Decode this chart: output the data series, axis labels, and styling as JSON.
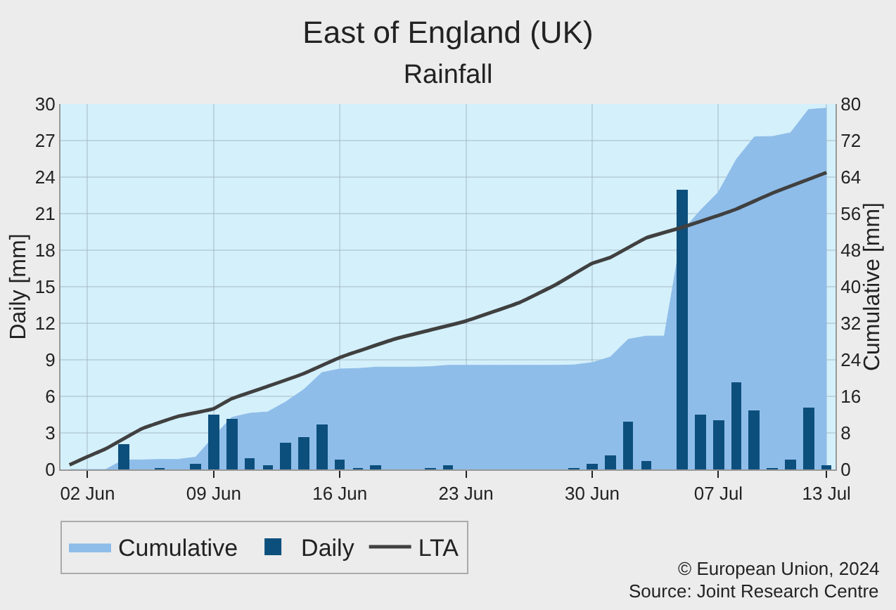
{
  "chart_data": {
    "type": "bar",
    "title": "East of England (UK)",
    "subtitle": "Rainfall",
    "ylabel": "Daily [mm]",
    "y2label": "Cumulative [mm]",
    "annotations": [
      "© European Union, 2024",
      "Source: Joint Research Centre"
    ],
    "xlim": [
      "2024-05-31T12:00",
      "2024-07-13T12:00"
    ],
    "xticks": [
      {
        "value": "2024-06-02",
        "label": "02 Jun"
      },
      {
        "value": "2024-06-09",
        "label": "09 Jun"
      },
      {
        "value": "2024-06-16",
        "label": "16 Jun"
      },
      {
        "value": "2024-06-23",
        "label": "23 Jun"
      },
      {
        "value": "2024-06-30",
        "label": "30 Jun"
      },
      {
        "value": "2024-07-07",
        "label": "07 Jul"
      },
      {
        "value": "2024-07-13",
        "label": "13 Jul"
      }
    ],
    "ylim": [
      0,
      30
    ],
    "yticks": [
      0,
      3,
      6,
      9,
      12,
      15,
      18,
      21,
      24,
      27,
      30
    ],
    "y2lim": [
      0,
      80
    ],
    "y2ticks": [
      0,
      8,
      16,
      24,
      32,
      40,
      48,
      56,
      64,
      72,
      80
    ],
    "grid": true,
    "legend": "bottom left",
    "series": [
      {
        "name": "Cumulative",
        "type": "area",
        "axis": "y2",
        "color": "#8fbde9",
        "x": [
          "2024-06-01",
          "2024-06-02",
          "2024-06-03",
          "2024-06-04",
          "2024-06-05",
          "2024-06-06",
          "2024-06-07",
          "2024-06-08",
          "2024-06-09",
          "2024-06-10",
          "2024-06-11",
          "2024-06-12",
          "2024-06-13",
          "2024-06-14",
          "2024-06-15",
          "2024-06-16",
          "2024-06-17",
          "2024-06-18",
          "2024-06-19",
          "2024-06-20",
          "2024-06-21",
          "2024-06-22",
          "2024-06-23",
          "2024-06-24",
          "2024-06-25",
          "2024-06-26",
          "2024-06-27",
          "2024-06-28",
          "2024-06-29",
          "2024-06-30",
          "2024-07-01",
          "2024-07-02",
          "2024-07-03",
          "2024-07-04",
          "2024-07-05",
          "2024-07-06",
          "2024-07-07",
          "2024-07-08",
          "2024-07-09",
          "2024-07-10",
          "2024-07-11",
          "2024-07-12",
          "2024-07-13"
        ],
        "values": [
          0,
          0,
          0,
          2.1,
          2.1,
          2.2,
          2.2,
          2.7,
          7.2,
          11.4,
          12.3,
          12.6,
          14.8,
          17.5,
          21.2,
          22.0,
          22.1,
          22.4,
          22.4,
          22.4,
          22.5,
          22.8,
          22.8,
          22.8,
          22.8,
          22.8,
          22.8,
          22.8,
          22.9,
          23.4,
          24.6,
          28.5,
          29.2,
          29.2,
          52.2,
          56.7,
          60.7,
          67.9,
          72.8,
          72.9,
          73.7,
          78.8,
          79.1
        ]
      },
      {
        "name": "Daily",
        "axis": "y",
        "color": "#0d4f7c",
        "x": [
          "2024-06-04",
          "2024-06-06",
          "2024-06-08",
          "2024-06-09",
          "2024-06-10",
          "2024-06-11",
          "2024-06-12",
          "2024-06-13",
          "2024-06-14",
          "2024-06-15",
          "2024-06-16",
          "2024-06-17",
          "2024-06-18",
          "2024-06-21",
          "2024-06-22",
          "2024-06-29",
          "2024-06-30",
          "2024-07-01",
          "2024-07-02",
          "2024-07-03",
          "2024-07-05",
          "2024-07-06",
          "2024-07-07",
          "2024-07-08",
          "2024-07-09",
          "2024-07-10",
          "2024-07-11",
          "2024-07-12",
          "2024-07-13"
        ],
        "values": [
          2.1,
          0.1,
          0.5,
          4.5,
          4.2,
          0.9,
          0.3,
          2.2,
          2.7,
          3.7,
          0.8,
          0.1,
          0.3,
          0.1,
          0.3,
          0.1,
          0.5,
          1.2,
          3.9,
          0.7,
          23.0,
          4.5,
          4.0,
          7.2,
          4.9,
          0.1,
          0.8,
          5.1,
          0.3
        ]
      },
      {
        "name": "LTA",
        "type": "line",
        "axis": "y2",
        "color": "#404040",
        "x": [
          "2024-06-01",
          "2024-06-02",
          "2024-06-03",
          "2024-06-05",
          "2024-06-07",
          "2024-06-09",
          "2024-06-10",
          "2024-06-12",
          "2024-06-14",
          "2024-06-16",
          "2024-06-19",
          "2024-06-21",
          "2024-06-23",
          "2024-06-26",
          "2024-06-28",
          "2024-06-30",
          "2024-07-01",
          "2024-07-03",
          "2024-07-05",
          "2024-07-07",
          "2024-07-08",
          "2024-07-10",
          "2024-07-13"
        ],
        "values": [
          1.0,
          2.8,
          4.5,
          8.9,
          11.6,
          13.3,
          15.5,
          18.2,
          21.0,
          24.5,
          28.5,
          30.5,
          32.5,
          36.6,
          40.5,
          45.1,
          46.4,
          50.7,
          53.0,
          55.6,
          57.0,
          60.5,
          65.0
        ]
      }
    ]
  }
}
